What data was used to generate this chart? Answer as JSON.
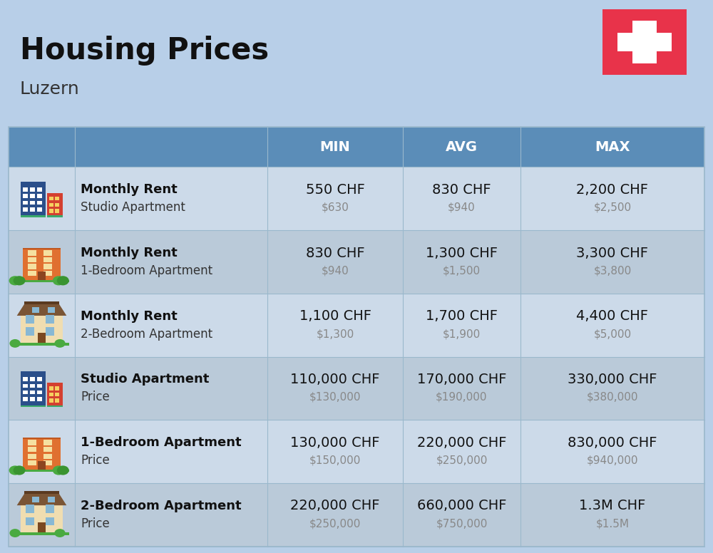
{
  "title": "Housing Prices",
  "subtitle": "Luzern",
  "background_color": "#b8cfe8",
  "header_color": "#5b8db8",
  "header_text_color": "#ffffff",
  "row_colors": [
    "#ccdae9",
    "#bacad9"
  ],
  "col_headers": [
    "MIN",
    "AVG",
    "MAX"
  ],
  "rows": [
    {
      "label_bold": "Monthly Rent",
      "label_sub": "Studio Apartment",
      "icon_type": "blue_building",
      "min_chf": "550 CHF",
      "min_usd": "$630",
      "avg_chf": "830 CHF",
      "avg_usd": "$940",
      "max_chf": "2,200 CHF",
      "max_usd": "$2,500"
    },
    {
      "label_bold": "Monthly Rent",
      "label_sub": "1-Bedroom Apartment",
      "icon_type": "orange_building",
      "min_chf": "830 CHF",
      "min_usd": "$940",
      "avg_chf": "1,300 CHF",
      "avg_usd": "$1,500",
      "max_chf": "3,300 CHF",
      "max_usd": "$3,800"
    },
    {
      "label_bold": "Monthly Rent",
      "label_sub": "2-Bedroom Apartment",
      "icon_type": "beige_building",
      "min_chf": "1,100 CHF",
      "min_usd": "$1,300",
      "avg_chf": "1,700 CHF",
      "avg_usd": "$1,900",
      "max_chf": "4,400 CHF",
      "max_usd": "$5,000"
    },
    {
      "label_bold": "Studio Apartment",
      "label_sub": "Price",
      "icon_type": "blue_building",
      "min_chf": "110,000 CHF",
      "min_usd": "$130,000",
      "avg_chf": "170,000 CHF",
      "avg_usd": "$190,000",
      "max_chf": "330,000 CHF",
      "max_usd": "$380,000"
    },
    {
      "label_bold": "1-Bedroom Apartment",
      "label_sub": "Price",
      "icon_type": "orange_building",
      "min_chf": "130,000 CHF",
      "min_usd": "$150,000",
      "avg_chf": "220,000 CHF",
      "avg_usd": "$250,000",
      "max_chf": "830,000 CHF",
      "max_usd": "$940,000"
    },
    {
      "label_bold": "2-Bedroom Apartment",
      "label_sub": "Price",
      "icon_type": "beige_building",
      "min_chf": "220,000 CHF",
      "min_usd": "$250,000",
      "avg_chf": "660,000 CHF",
      "avg_usd": "$750,000",
      "max_chf": "1.3M CHF",
      "max_usd": "$1.5M"
    }
  ],
  "flag_color": "#e8334a",
  "flag_cross_color": "#ffffff",
  "title_fontsize": 30,
  "subtitle_fontsize": 18,
  "header_fontsize": 14,
  "chf_fontsize": 14,
  "usd_fontsize": 11,
  "label_bold_fontsize": 13,
  "label_sub_fontsize": 12
}
